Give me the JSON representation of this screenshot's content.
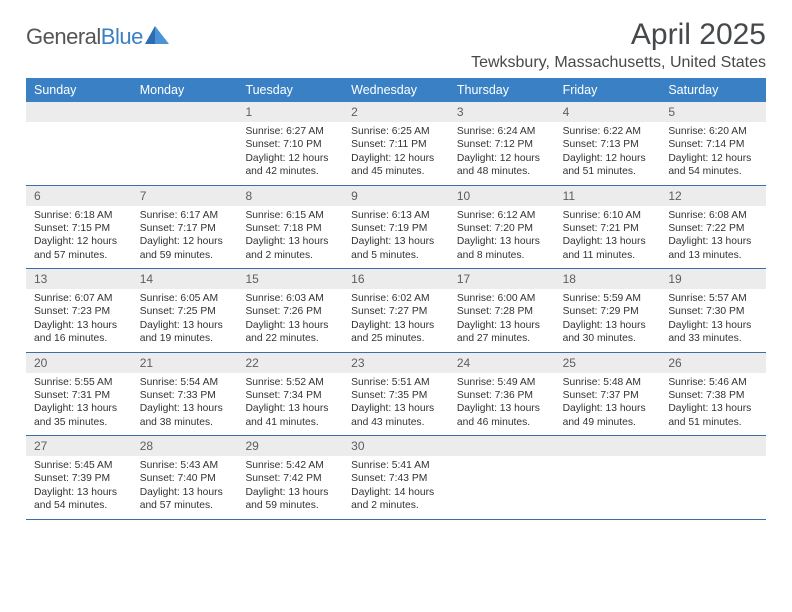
{
  "logo": {
    "text_general": "General",
    "text_blue": "Blue"
  },
  "title": "April 2025",
  "location": "Tewksbury, Massachusetts, United States",
  "colors": {
    "header_bg": "#3a80c4",
    "daynum_bg": "#ececec",
    "week_border": "#3a6ea5",
    "title_color": "#46494c"
  },
  "days_of_week": [
    "Sunday",
    "Monday",
    "Tuesday",
    "Wednesday",
    "Thursday",
    "Friday",
    "Saturday"
  ],
  "weeks": [
    [
      {
        "n": null
      },
      {
        "n": null
      },
      {
        "n": "1",
        "sunrise": "6:27 AM",
        "sunset": "7:10 PM",
        "daylight": "12 hours and 42 minutes."
      },
      {
        "n": "2",
        "sunrise": "6:25 AM",
        "sunset": "7:11 PM",
        "daylight": "12 hours and 45 minutes."
      },
      {
        "n": "3",
        "sunrise": "6:24 AM",
        "sunset": "7:12 PM",
        "daylight": "12 hours and 48 minutes."
      },
      {
        "n": "4",
        "sunrise": "6:22 AM",
        "sunset": "7:13 PM",
        "daylight": "12 hours and 51 minutes."
      },
      {
        "n": "5",
        "sunrise": "6:20 AM",
        "sunset": "7:14 PM",
        "daylight": "12 hours and 54 minutes."
      }
    ],
    [
      {
        "n": "6",
        "sunrise": "6:18 AM",
        "sunset": "7:15 PM",
        "daylight": "12 hours and 57 minutes."
      },
      {
        "n": "7",
        "sunrise": "6:17 AM",
        "sunset": "7:17 PM",
        "daylight": "12 hours and 59 minutes."
      },
      {
        "n": "8",
        "sunrise": "6:15 AM",
        "sunset": "7:18 PM",
        "daylight": "13 hours and 2 minutes."
      },
      {
        "n": "9",
        "sunrise": "6:13 AM",
        "sunset": "7:19 PM",
        "daylight": "13 hours and 5 minutes."
      },
      {
        "n": "10",
        "sunrise": "6:12 AM",
        "sunset": "7:20 PM",
        "daylight": "13 hours and 8 minutes."
      },
      {
        "n": "11",
        "sunrise": "6:10 AM",
        "sunset": "7:21 PM",
        "daylight": "13 hours and 11 minutes."
      },
      {
        "n": "12",
        "sunrise": "6:08 AM",
        "sunset": "7:22 PM",
        "daylight": "13 hours and 13 minutes."
      }
    ],
    [
      {
        "n": "13",
        "sunrise": "6:07 AM",
        "sunset": "7:23 PM",
        "daylight": "13 hours and 16 minutes."
      },
      {
        "n": "14",
        "sunrise": "6:05 AM",
        "sunset": "7:25 PM",
        "daylight": "13 hours and 19 minutes."
      },
      {
        "n": "15",
        "sunrise": "6:03 AM",
        "sunset": "7:26 PM",
        "daylight": "13 hours and 22 minutes."
      },
      {
        "n": "16",
        "sunrise": "6:02 AM",
        "sunset": "7:27 PM",
        "daylight": "13 hours and 25 minutes."
      },
      {
        "n": "17",
        "sunrise": "6:00 AM",
        "sunset": "7:28 PM",
        "daylight": "13 hours and 27 minutes."
      },
      {
        "n": "18",
        "sunrise": "5:59 AM",
        "sunset": "7:29 PM",
        "daylight": "13 hours and 30 minutes."
      },
      {
        "n": "19",
        "sunrise": "5:57 AM",
        "sunset": "7:30 PM",
        "daylight": "13 hours and 33 minutes."
      }
    ],
    [
      {
        "n": "20",
        "sunrise": "5:55 AM",
        "sunset": "7:31 PM",
        "daylight": "13 hours and 35 minutes."
      },
      {
        "n": "21",
        "sunrise": "5:54 AM",
        "sunset": "7:33 PM",
        "daylight": "13 hours and 38 minutes."
      },
      {
        "n": "22",
        "sunrise": "5:52 AM",
        "sunset": "7:34 PM",
        "daylight": "13 hours and 41 minutes."
      },
      {
        "n": "23",
        "sunrise": "5:51 AM",
        "sunset": "7:35 PM",
        "daylight": "13 hours and 43 minutes."
      },
      {
        "n": "24",
        "sunrise": "5:49 AM",
        "sunset": "7:36 PM",
        "daylight": "13 hours and 46 minutes."
      },
      {
        "n": "25",
        "sunrise": "5:48 AM",
        "sunset": "7:37 PM",
        "daylight": "13 hours and 49 minutes."
      },
      {
        "n": "26",
        "sunrise": "5:46 AM",
        "sunset": "7:38 PM",
        "daylight": "13 hours and 51 minutes."
      }
    ],
    [
      {
        "n": "27",
        "sunrise": "5:45 AM",
        "sunset": "7:39 PM",
        "daylight": "13 hours and 54 minutes."
      },
      {
        "n": "28",
        "sunrise": "5:43 AM",
        "sunset": "7:40 PM",
        "daylight": "13 hours and 57 minutes."
      },
      {
        "n": "29",
        "sunrise": "5:42 AM",
        "sunset": "7:42 PM",
        "daylight": "13 hours and 59 minutes."
      },
      {
        "n": "30",
        "sunrise": "5:41 AM",
        "sunset": "7:43 PM",
        "daylight": "14 hours and 2 minutes."
      },
      {
        "n": null
      },
      {
        "n": null
      },
      {
        "n": null
      }
    ]
  ],
  "labels": {
    "sunrise": "Sunrise:",
    "sunset": "Sunset:",
    "daylight": "Daylight:"
  }
}
